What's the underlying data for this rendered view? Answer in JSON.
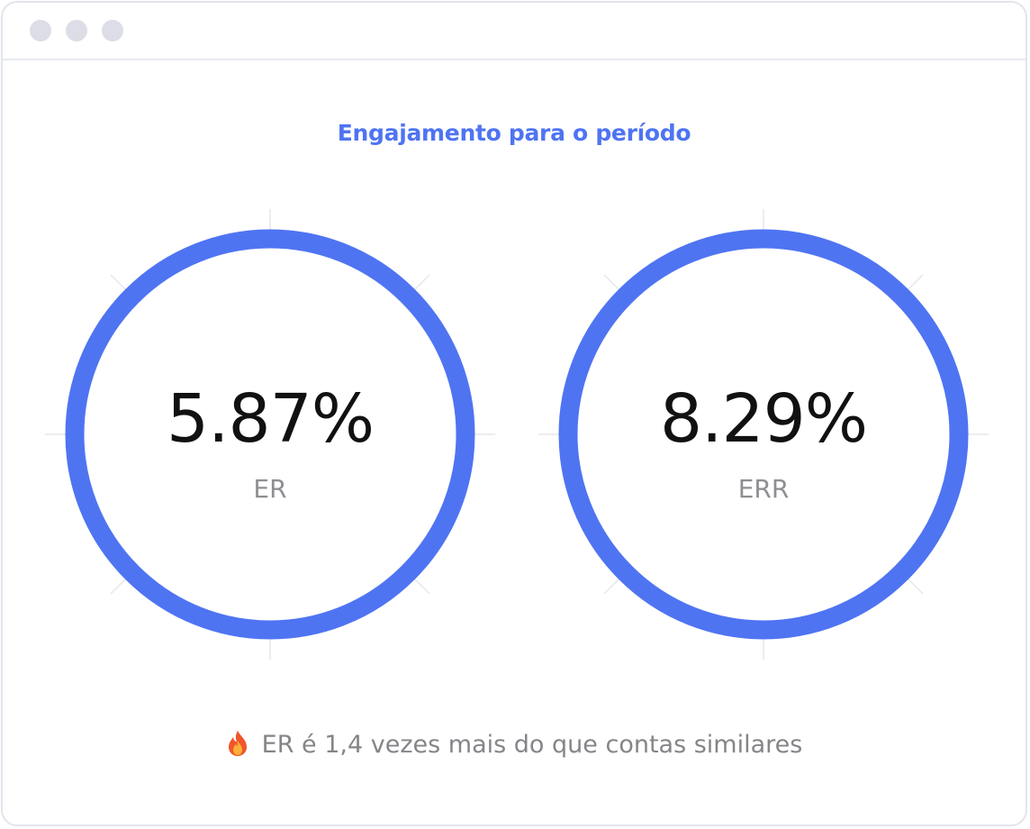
{
  "header": {
    "title": "Engajamento para o período"
  },
  "metrics": [
    {
      "value": "5.87%",
      "label": "ER"
    },
    {
      "value": "8.29%",
      "label": "ERR"
    }
  ],
  "footer": {
    "icon": "fire-icon",
    "text": "ER é 1,4 vezes mais do que contas similares"
  },
  "colors": {
    "accent": "#4f74f2",
    "value_text": "#111111",
    "label_text": "#8e8e93",
    "window_border": "#e3e5ec",
    "window_dot": "#dcdde6"
  }
}
